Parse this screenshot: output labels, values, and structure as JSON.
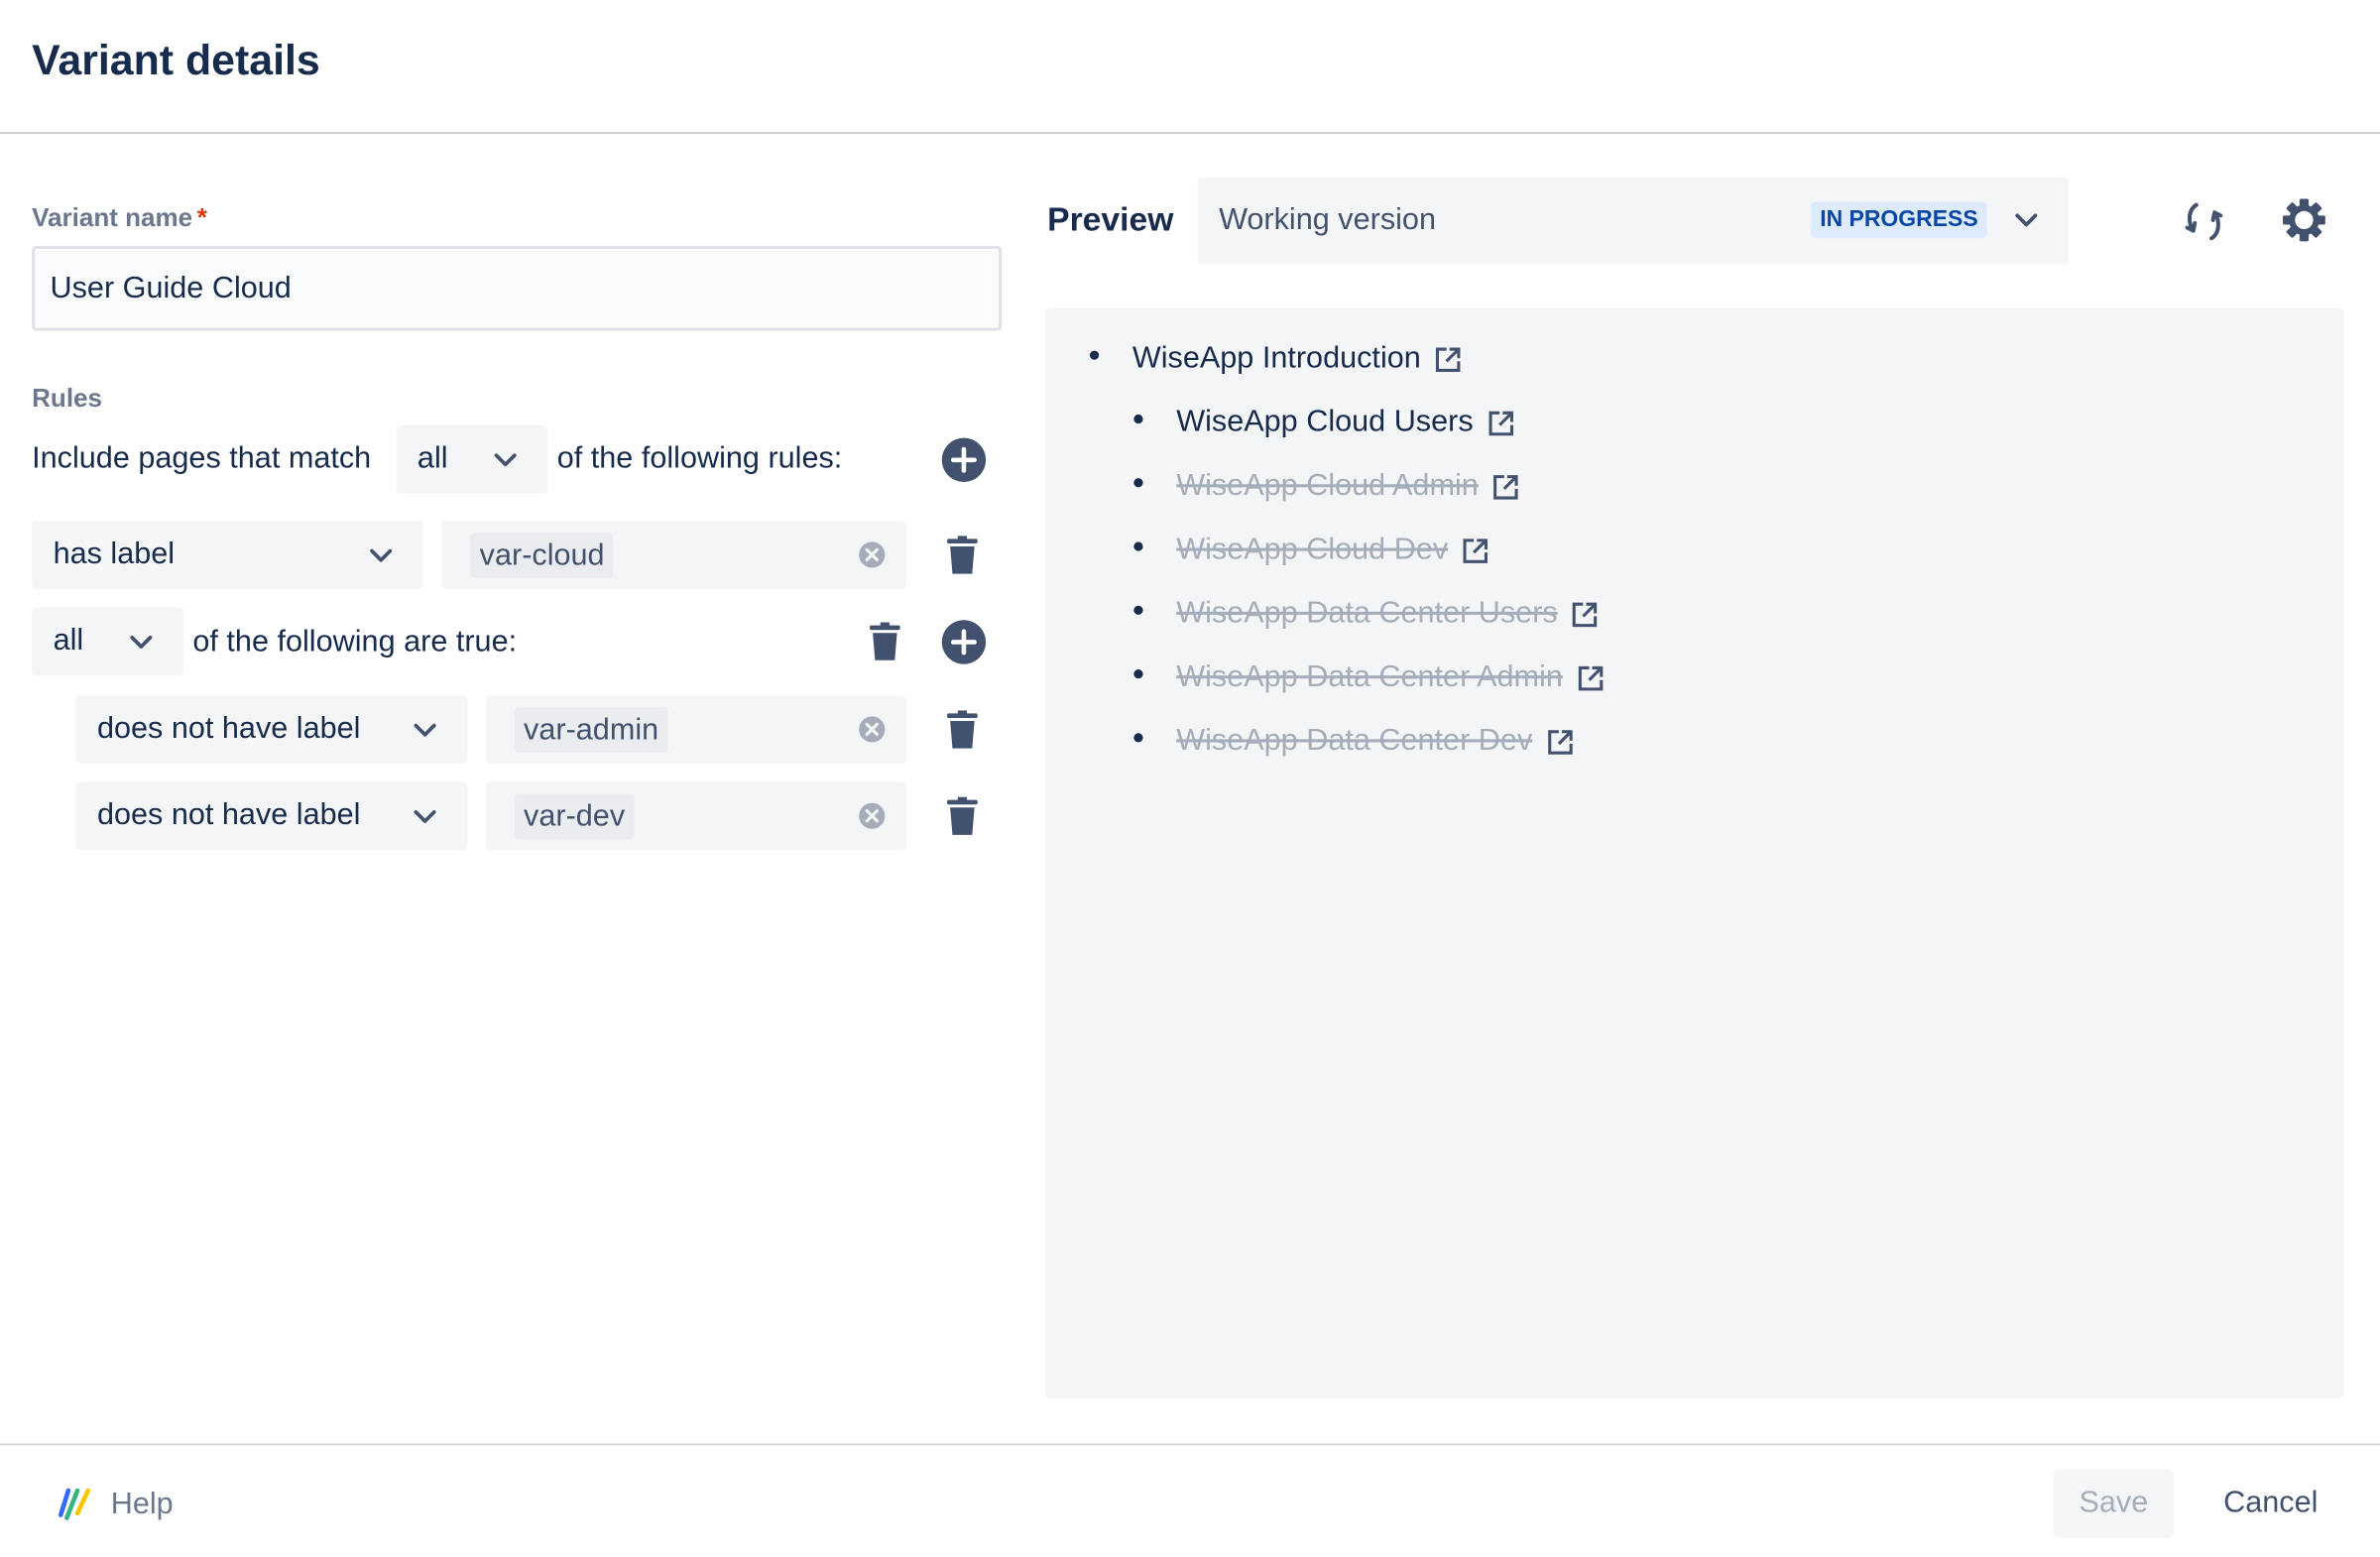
{
  "header": {
    "title": "Variant details"
  },
  "form": {
    "variant_name_label": "Variant name",
    "required_mark": "*",
    "variant_name_value": "User Guide Cloud",
    "rules_label": "Rules",
    "include_prefix": "Include pages that match",
    "match_mode": "all",
    "include_suffix": "of the following rules:",
    "rules": [
      {
        "condition": "has label",
        "value": "var-cloud"
      },
      {
        "group_mode": "all",
        "group_text": "of the following are true:"
      },
      {
        "condition": "does not have label",
        "value": "var-admin"
      },
      {
        "condition": "does not have label",
        "value": "var-dev"
      }
    ]
  },
  "preview": {
    "label": "Preview",
    "version": "Working version",
    "status_badge": "IN PROGRESS",
    "badge_bg": "#DEEBFF",
    "badge_color": "#0747A6",
    "items": [
      {
        "title": "WiseApp Introduction",
        "level": 0,
        "included": true
      },
      {
        "title": "WiseApp Cloud Users",
        "level": 1,
        "included": true
      },
      {
        "title": "WiseApp Cloud Admin",
        "level": 1,
        "included": false
      },
      {
        "title": "WiseApp Cloud Dev",
        "level": 1,
        "included": false
      },
      {
        "title": "WiseApp Data Center Users",
        "level": 1,
        "included": false
      },
      {
        "title": "WiseApp Data Center Admin",
        "level": 1,
        "included": false
      },
      {
        "title": "WiseApp Data Center Dev",
        "level": 1,
        "included": false
      }
    ]
  },
  "footer": {
    "help": "Help",
    "save": "Save",
    "cancel": "Cancel"
  }
}
